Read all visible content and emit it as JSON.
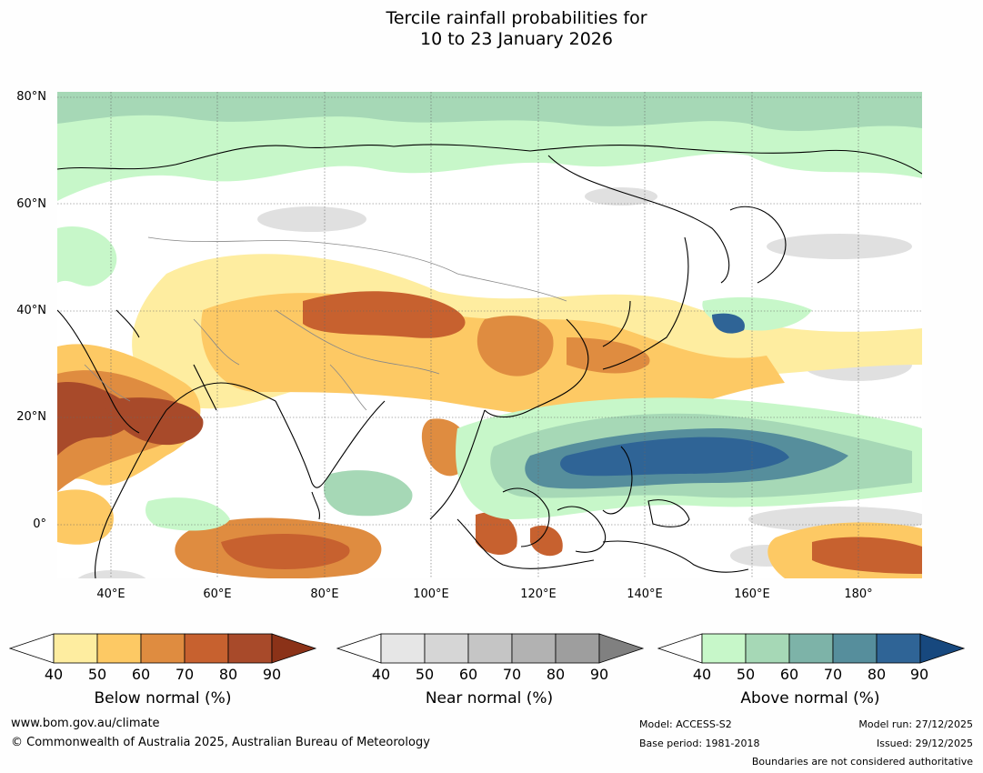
{
  "title": {
    "line1": "Tercile rainfall probabilities for",
    "line2": "10 to 23 January 2026"
  },
  "map": {
    "latitude_labels": [
      "80°N",
      "60°N",
      "40°N",
      "20°N",
      "0°"
    ],
    "longitude_labels": [
      "40°E",
      "60°E",
      "80°E",
      "100°E",
      "120°E",
      "140°E",
      "160°E",
      "180°"
    ],
    "extent": {
      "lon_min": 30,
      "lon_max": 192,
      "lat_min": -10,
      "lat_max": 81
    }
  },
  "colorbars": [
    {
      "title": "Below normal (%)",
      "ticks": [
        "40",
        "50",
        "60",
        "70",
        "80",
        "90"
      ],
      "colors": [
        "#ffffff",
        "#feeda0",
        "#fdc964",
        "#df8c40",
        "#c7612f",
        "#a84a2a",
        "#8b3218"
      ]
    },
    {
      "title": "Near normal (%)",
      "ticks": [
        "40",
        "50",
        "60",
        "70",
        "80",
        "90"
      ],
      "colors": [
        "#ffffff",
        "#e6e6e6",
        "#d6d6d6",
        "#c5c5c5",
        "#b2b2b2",
        "#9e9e9e",
        "#808080"
      ]
    },
    {
      "title": "Above normal (%)",
      "ticks": [
        "40",
        "50",
        "60",
        "70",
        "80",
        "90"
      ],
      "colors": [
        "#ffffff",
        "#c7f7c9",
        "#a6d8b6",
        "#7db3a8",
        "#568e9c",
        "#2f6496",
        "#17487e"
      ]
    }
  ],
  "footer": {
    "website": "www.bom.gov.au/climate",
    "copyright": "© Commonwealth of Australia 2025, Australian Bureau of Meteorology",
    "model": "Model: ACCESS-S2",
    "base_period": "Base period: 1981-2018",
    "model_run": "Model run: 27/12/2025",
    "issued": "Issued: 29/12/2025",
    "disclaimer": "Boundaries are not considered authoritative"
  }
}
